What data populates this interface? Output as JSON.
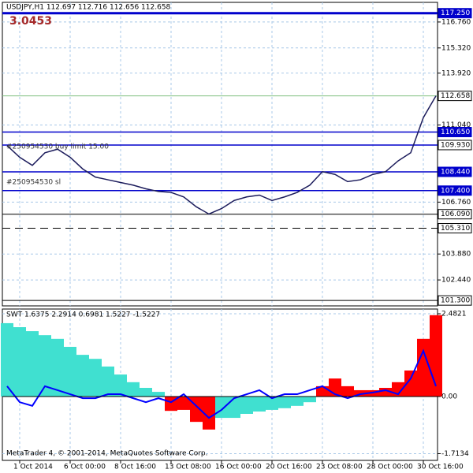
{
  "chart_data": [
    {
      "type": "line",
      "title": "USDJPY,H1 112.697 112.716 112.656 112.658",
      "subtitle": "3.0453",
      "categories": [
        null,
        "1 Oct 2014",
        null,
        null,
        null,
        "6 Oct 00:00",
        null,
        null,
        null,
        "8 Oct 16:00",
        null,
        null,
        null,
        "13 Oct 08:00",
        null,
        null,
        null,
        "16 Oct 00:00",
        null,
        null,
        null,
        "20 Oct 16:00",
        null,
        null,
        null,
        "23 Oct 08:00",
        null,
        null,
        null,
        "28 Oct 00:00",
        null,
        null,
        null,
        "30 Oct 16:00",
        null
      ],
      "series": [
        {
          "color": "#1c1c5c",
          "values": [
            109.9,
            109.25,
            108.8,
            109.5,
            109.7,
            109.25,
            108.6,
            108.15,
            108.0,
            107.85,
            107.7,
            107.5,
            107.35,
            107.3,
            107.05,
            106.5,
            106.1,
            106.4,
            106.85,
            107.05,
            107.15,
            106.85,
            107.05,
            107.3,
            107.7,
            108.45,
            108.3,
            107.9,
            108.0,
            108.3,
            108.45,
            109.05,
            109.5,
            111.45,
            112.66
          ]
        }
      ],
      "ylim": [
        101.0,
        117.85
      ],
      "yticks": [
        {
          "value": 116.76,
          "label": "116.760"
        },
        {
          "value": 115.32,
          "label": "115.320"
        },
        {
          "value": 113.92,
          "label": "113.920"
        },
        {
          "value": 111.04,
          "label": "111.040"
        },
        {
          "value": 106.76,
          "label": "106.760"
        },
        {
          "value": 103.88,
          "label": "103.880"
        },
        {
          "value": 102.44,
          "label": "102.440"
        }
      ],
      "levels": [
        {
          "value": 117.25,
          "label": "117.250",
          "color": "#0000cc"
        },
        {
          "value": 112.658,
          "label": "112.658",
          "color": "#7fbf7f"
        },
        {
          "value": 110.65,
          "label": "110.650",
          "color": "#0000cc"
        },
        {
          "value": 109.93,
          "label": "109.930",
          "color": "#0000cc"
        },
        {
          "value": 108.44,
          "label": "108.440",
          "color": "#0000cc"
        },
        {
          "value": 107.4,
          "label": "107.400",
          "color": "#0000cc"
        },
        {
          "value": 106.09,
          "label": "106.090",
          "color": "#000000"
        },
        {
          "value": 105.31,
          "label": "105.310",
          "color": "#000000"
        },
        {
          "value": 101.3,
          "label": "101.300",
          "color": "#000000"
        }
      ],
      "annotations": [
        "#250954530 buy limit 15.00",
        "#250954530 sl"
      ],
      "grid": true
    },
    {
      "type": "bar",
      "title": "SWT 1.6375 2.2914 0.6981 1.5227 -1.5227",
      "series": [
        {
          "values": [
            2.2,
            2.08,
            1.96,
            1.84,
            1.73,
            1.49,
            1.25,
            1.13,
            0.9,
            0.66,
            0.43,
            0.26,
            0.14,
            -0.43,
            -0.4,
            -0.76,
            -0.99,
            -0.64,
            -0.64,
            -0.52,
            -0.45,
            -0.4,
            -0.35,
            -0.28,
            -0.17,
            0.31,
            0.54,
            0.31,
            0.19,
            0.19,
            0.26,
            0.43,
            0.78,
            1.73,
            2.44
          ],
          "colors": [
            "#40e0d0",
            "#40e0d0",
            "#40e0d0",
            "#40e0d0",
            "#40e0d0",
            "#40e0d0",
            "#40e0d0",
            "#40e0d0",
            "#40e0d0",
            "#40e0d0",
            "#40e0d0",
            "#40e0d0",
            "#40e0d0",
            "#ff0000",
            "#ff0000",
            "#ff0000",
            "#ff0000",
            "#40e0d0",
            "#40e0d0",
            "#40e0d0",
            "#40e0d0",
            "#40e0d0",
            "#40e0d0",
            "#40e0d0",
            "#40e0d0",
            "#ff0000",
            "#ff0000",
            "#ff0000",
            "#ff0000",
            "#ff0000",
            "#ff0000",
            "#ff0000",
            "#ff0000",
            "#ff0000",
            "#ff0000"
          ]
        },
        {
          "type": "line",
          "color": "#0000ff",
          "values": [
            0.31,
            -0.17,
            -0.28,
            0.31,
            0.19,
            0.07,
            -0.05,
            -0.05,
            0.07,
            0.07,
            -0.05,
            -0.17,
            -0.05,
            -0.17,
            0.07,
            -0.28,
            -0.64,
            -0.4,
            -0.05,
            0.07,
            0.19,
            -0.05,
            0.07,
            0.07,
            0.19,
            0.31,
            0.07,
            -0.05,
            0.07,
            0.12,
            0.19,
            0.07,
            0.54,
            1.37,
            0.31
          ]
        }
      ],
      "ylim": [
        -1.915,
        2.624
      ],
      "yticks": [
        2.4821,
        {
          "value": 0,
          "label": "0.00"
        },
        -1.7134
      ],
      "footer": "MetaTrader 4, © 2001-2014, MetaQuotes Software Corp.",
      "grid": true
    }
  ]
}
